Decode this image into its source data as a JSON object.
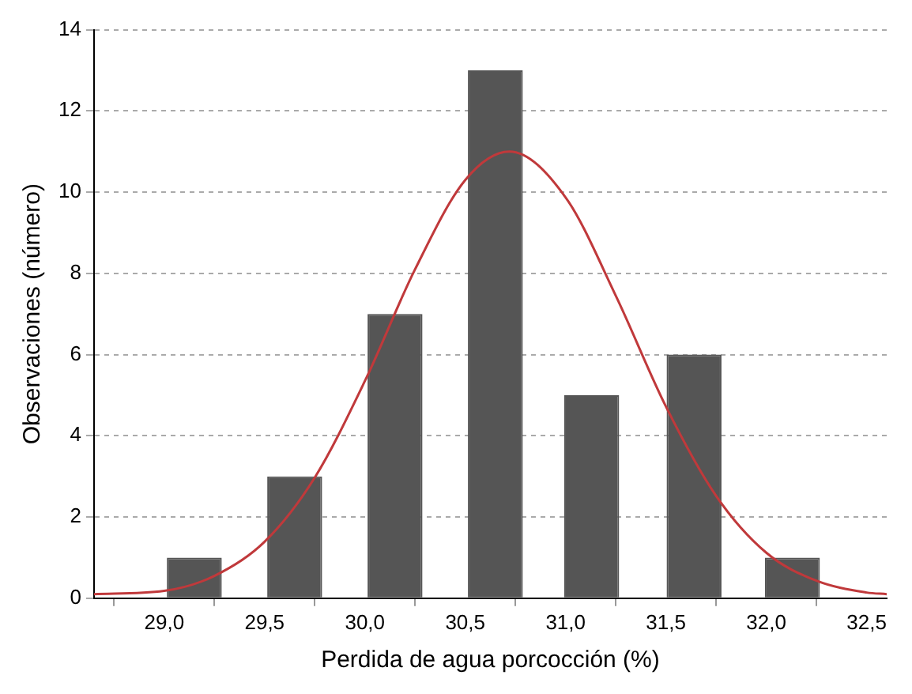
{
  "chart_data": {
    "type": "bar",
    "xlabel": "Perdida de agua porcocción (%)",
    "ylabel": "Observaciones (número)",
    "x": [
      29.15,
      29.65,
      30.15,
      30.65,
      31.13,
      31.64,
      32.13
    ],
    "values": [
      1,
      3,
      7,
      13,
      5,
      6,
      1
    ],
    "color": "#555555",
    "series": [
      {
        "type": "line",
        "color": "#c0393b",
        "x": [
          28.65,
          29.0,
          29.25,
          29.5,
          29.75,
          30.0,
          30.25,
          30.5,
          30.72,
          31.0,
          31.25,
          31.5,
          31.75,
          32.0,
          32.25,
          32.5,
          32.6
        ],
        "values": [
          0.1,
          0.18,
          0.55,
          1.39,
          2.97,
          5.35,
          8.1,
          10.3,
          11,
          9.87,
          7.45,
          4.72,
          2.52,
          1.12,
          0.43,
          0.14,
          0.1
        ]
      }
    ],
    "xlim": [
      28.65,
      32.6
    ],
    "xticks": [
      {
        "value": 29,
        "label": "29,0"
      },
      {
        "value": 29.5,
        "label": "29,5"
      },
      {
        "value": 30,
        "label": "30,0"
      },
      {
        "value": 30.5,
        "label": "30,5"
      },
      {
        "value": 31,
        "label": "31,0"
      },
      {
        "value": 31.5,
        "label": "31,5"
      },
      {
        "value": 32,
        "label": "32,0"
      },
      {
        "value": 32.5,
        "label": "32,5"
      }
    ],
    "ylim": [
      0,
      14
    ],
    "yticks": [
      0,
      2,
      4,
      6,
      8,
      10,
      12,
      14
    ],
    "grid": "y",
    "marker": "none",
    "line_style": "solid",
    "legend": false
  }
}
